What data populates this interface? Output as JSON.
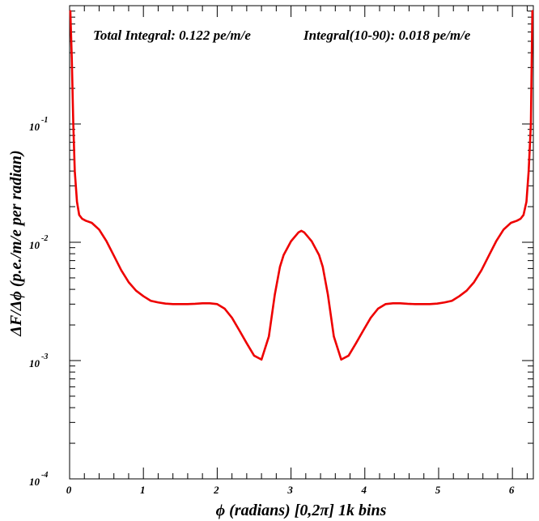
{
  "chart_data": {
    "type": "line",
    "annotations": [
      "Total Integral: 0.122 pe/m/e",
      "Integral(10-90): 0.018 pe/m/e"
    ],
    "xlabel": "ϕ (radians) [0,2π] 1k bins",
    "ylabel": "ΔF/Δϕ (p.e./m/e per radian)",
    "xlim": [
      0,
      6.2832
    ],
    "ylim": [
      0.0001,
      1
    ],
    "yscale": "log",
    "x_ticks": [
      0,
      1,
      2,
      3,
      4,
      5,
      6
    ],
    "y_ticks": [
      {
        "value": 0.1,
        "base": "10",
        "exp": "-1"
      },
      {
        "value": 0.01,
        "base": "10",
        "exp": "-2"
      },
      {
        "value": 0.001,
        "base": "10",
        "exp": "-3"
      },
      {
        "value": 0.0001,
        "base": "10",
        "exp": "-4"
      }
    ],
    "series": [
      {
        "color": "#ee0000",
        "x": [
          0.01,
          0.03,
          0.05,
          0.07,
          0.1,
          0.13,
          0.17,
          0.22,
          0.3,
          0.4,
          0.5,
          0.6,
          0.7,
          0.8,
          0.9,
          1.0,
          1.1,
          1.2,
          1.3,
          1.4,
          1.5,
          1.6,
          1.7,
          1.8,
          1.9,
          2.0,
          2.1,
          2.2,
          2.3,
          2.4,
          2.5,
          2.6,
          2.7,
          2.78,
          2.85,
          2.9,
          3.0,
          3.1,
          3.14,
          3.18,
          3.28,
          3.38,
          3.43,
          3.5,
          3.58,
          3.68,
          3.78,
          3.88,
          3.98,
          4.08,
          4.18,
          4.28,
          4.38,
          4.48,
          4.58,
          4.68,
          4.78,
          4.88,
          4.98,
          5.08,
          5.18,
          5.28,
          5.38,
          5.48,
          5.58,
          5.68,
          5.78,
          5.88,
          5.98,
          6.06,
          6.11,
          6.15,
          6.19,
          6.22,
          6.25,
          6.27
        ],
        "y": [
          0.9,
          0.35,
          0.1,
          0.04,
          0.022,
          0.017,
          0.0158,
          0.0152,
          0.0146,
          0.0128,
          0.0102,
          0.0077,
          0.0058,
          0.0046,
          0.0039,
          0.0035,
          0.0032,
          0.0031,
          0.00303,
          0.003,
          0.003,
          0.003,
          0.00302,
          0.00305,
          0.00305,
          0.003,
          0.00275,
          0.0023,
          0.0018,
          0.0014,
          0.0011,
          0.00102,
          0.0016,
          0.0036,
          0.0062,
          0.0078,
          0.0102,
          0.0121,
          0.0125,
          0.0121,
          0.0102,
          0.0078,
          0.0062,
          0.0036,
          0.0016,
          0.00102,
          0.0011,
          0.0014,
          0.0018,
          0.0023,
          0.00275,
          0.003,
          0.00305,
          0.00305,
          0.00302,
          0.003,
          0.003,
          0.003,
          0.00303,
          0.0031,
          0.0032,
          0.0035,
          0.0039,
          0.0046,
          0.0058,
          0.0077,
          0.0102,
          0.0128,
          0.0146,
          0.0152,
          0.0158,
          0.017,
          0.022,
          0.04,
          0.1,
          0.9
        ]
      }
    ]
  }
}
